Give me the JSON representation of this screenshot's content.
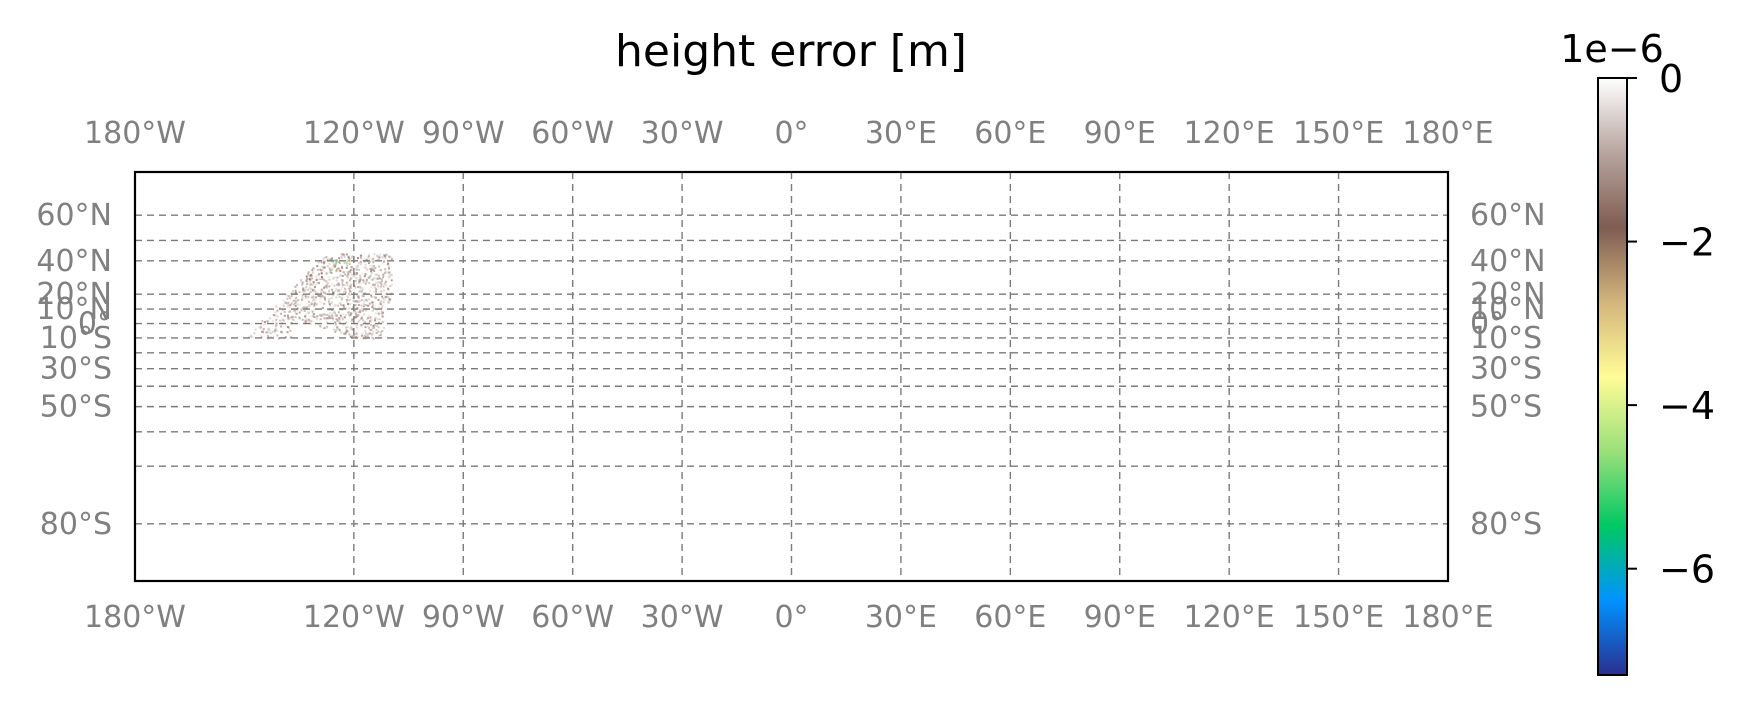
{
  "chart_data": {
    "type": "heatmap",
    "title": "height error [m]",
    "projection": "Mercator",
    "lon_range": [
      -180,
      180
    ],
    "lat_range": [
      -85,
      72
    ],
    "grid": true,
    "lon_ticks": [
      -180,
      -120,
      -90,
      -60,
      -30,
      0,
      30,
      60,
      90,
      120,
      150,
      180
    ],
    "lon_tick_labels": [
      "180°W",
      "120°W",
      "90°W",
      "60°W",
      "30°W",
      "0°",
      "30°E",
      "60°E",
      "90°E",
      "120°E",
      "150°E",
      "180°E"
    ],
    "lat_ticks": [
      60,
      40,
      20,
      10,
      0,
      -10,
      -30,
      -50,
      -80
    ],
    "lat_tick_labels": [
      "60°N",
      "40°N",
      "20°N",
      "10°N",
      "0°",
      "10°S",
      "30°S",
      "50°S",
      "80°S"
    ],
    "extra_gridlines_lat": [
      50,
      -20,
      -40,
      -60,
      -70
    ],
    "colorbar": {
      "colormap": "terrain",
      "range": [
        -7.3e-06,
        0
      ],
      "offset_label": "1e−6",
      "tick_values": [
        0,
        -2,
        -4,
        -6
      ],
      "tick_labels": [
        "0",
        "−2",
        "−4",
        "−6"
      ],
      "colors": [
        "#2b2f8f",
        "#0093ff",
        "#00c864",
        "#9be07a",
        "#fffc96",
        "#d3b57d",
        "#7f5c52",
        "#b8a59f",
        "#ffffff"
      ]
    },
    "data_region": {
      "lon_range": [
        -150,
        -105
      ],
      "lat_range": [
        -10,
        45
      ],
      "values_range": [
        -5.5e-06,
        0
      ],
      "typical_value": -1e-06
    }
  }
}
